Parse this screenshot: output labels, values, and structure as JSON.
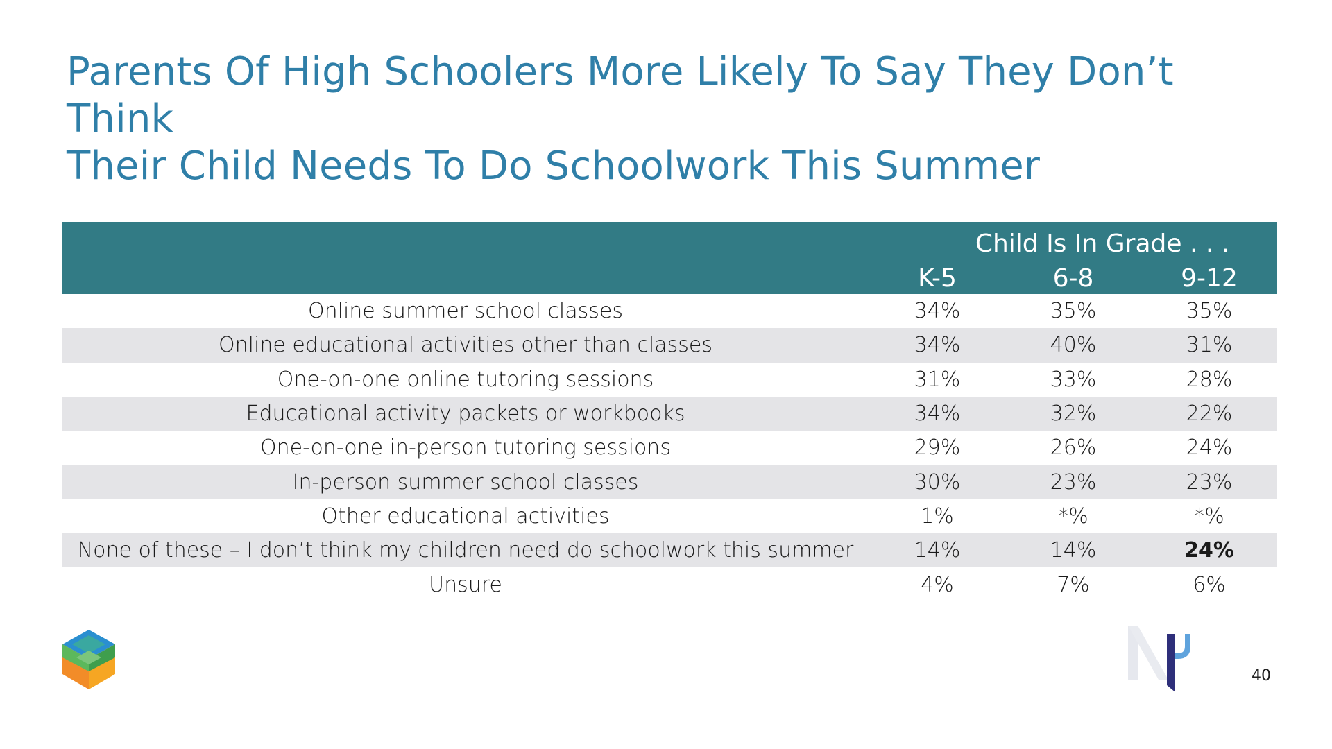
{
  "title": {
    "line1": "Parents Of High Schoolers More Likely To Say They Don’t Think",
    "line2": "Their Child Needs To Do Schoolwork This Summer"
  },
  "page_number": "40",
  "chart_data": {
    "type": "table",
    "group_header": "Child Is In Grade . . .",
    "columns": [
      "K-5",
      "6-8",
      "9-12"
    ],
    "rows": [
      {
        "label": "Online summer school classes",
        "values": [
          "34%",
          "35%",
          "35%"
        ]
      },
      {
        "label": "Online educational activities other than classes",
        "values": [
          "34%",
          "40%",
          "31%"
        ]
      },
      {
        "label": "One-on-one online tutoring sessions",
        "values": [
          "31%",
          "33%",
          "28%"
        ]
      },
      {
        "label": "Educational activity packets or workbooks",
        "values": [
          "34%",
          "32%",
          "22%"
        ]
      },
      {
        "label": "One-on-one in-person tutoring sessions",
        "values": [
          "29%",
          "26%",
          "24%"
        ]
      },
      {
        "label": "In-person summer school classes",
        "values": [
          "30%",
          "23%",
          "23%"
        ]
      },
      {
        "label": "Other educational activities",
        "values": [
          "1%",
          "*%",
          "*%"
        ]
      },
      {
        "label": "None of these – I don’t think my children need do schoolwork this summer",
        "values": [
          "14%",
          "14%",
          "24%"
        ]
      },
      {
        "label": "Unsure",
        "values": [
          "4%",
          "7%",
          "6%"
        ]
      }
    ],
    "highlighted_cell": {
      "row": 7,
      "column": 2
    },
    "colors": {
      "header_bg": "#327b85",
      "alt_row_bg": "#e4e4e7",
      "title": "#2f7fa8"
    }
  },
  "logos": {
    "left": "cube-logo",
    "right": "np-logo"
  }
}
